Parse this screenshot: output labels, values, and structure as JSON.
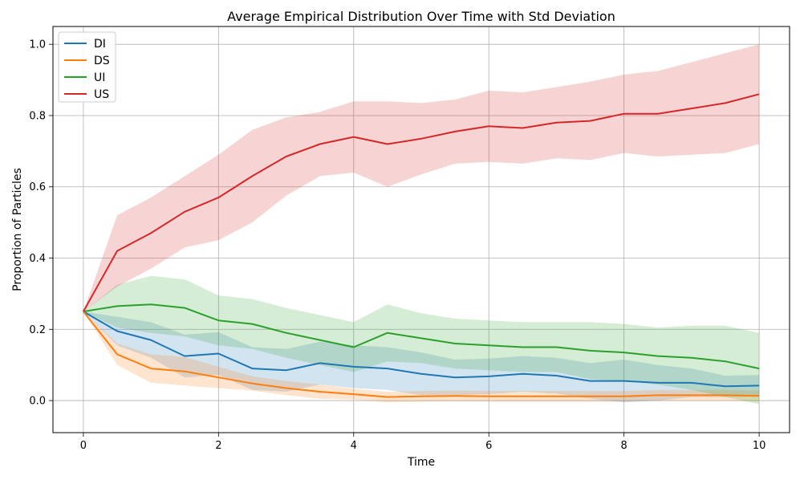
{
  "chart_data": {
    "type": "line",
    "title": "Average Empirical Distribution Over Time with Std Deviation",
    "xlabel": "Time",
    "ylabel": "Proportion of Particles",
    "xlim": [
      -0.45,
      10.45
    ],
    "ylim": [
      -0.09,
      1.05
    ],
    "grid": true,
    "legend_position": "top-left",
    "x_ticks": [
      0,
      2,
      4,
      6,
      8,
      10
    ],
    "x_tick_labels": [
      "0",
      "2",
      "4",
      "6",
      "8",
      "10"
    ],
    "y_ticks": [
      0.0,
      0.2,
      0.4,
      0.6,
      0.8,
      1.0
    ],
    "y_tick_labels": [
      "0.0",
      "0.2",
      "0.4",
      "0.6",
      "0.8",
      "1.0"
    ],
    "x": [
      0,
      0.5,
      1,
      1.5,
      2,
      2.5,
      3,
      3.5,
      4,
      4.5,
      5,
      5.5,
      6,
      6.5,
      7,
      7.5,
      8,
      8.5,
      9,
      9.5,
      10
    ],
    "series": [
      {
        "name": "DI",
        "color": "#1f77b4",
        "mean": [
          0.25,
          0.195,
          0.17,
          0.125,
          0.132,
          0.09,
          0.085,
          0.105,
          0.095,
          0.09,
          0.075,
          0.065,
          0.068,
          0.075,
          0.07,
          0.055,
          0.055,
          0.05,
          0.05,
          0.04,
          0.042
        ],
        "std": [
          0.0,
          0.04,
          0.05,
          0.06,
          0.06,
          0.06,
          0.06,
          0.06,
          0.06,
          0.06,
          0.06,
          0.05,
          0.05,
          0.05,
          0.05,
          0.05,
          0.06,
          0.05,
          0.04,
          0.03,
          0.03
        ]
      },
      {
        "name": "DS",
        "color": "#ff7f0e",
        "mean": [
          0.25,
          0.13,
          0.09,
          0.082,
          0.065,
          0.048,
          0.035,
          0.025,
          0.018,
          0.01,
          0.012,
          0.013,
          0.012,
          0.012,
          0.012,
          0.012,
          0.012,
          0.015,
          0.015,
          0.015,
          0.013
        ],
        "std": [
          0.0,
          0.03,
          0.04,
          0.04,
          0.03,
          0.02,
          0.02,
          0.02,
          0.015,
          0.015,
          0.015,
          0.015,
          0.015,
          0.015,
          0.015,
          0.015,
          0.015,
          0.015,
          0.015,
          0.015,
          0.015
        ]
      },
      {
        "name": "UI",
        "color": "#2ca02c",
        "mean": [
          0.25,
          0.265,
          0.27,
          0.26,
          0.225,
          0.215,
          0.19,
          0.17,
          0.15,
          0.19,
          0.175,
          0.16,
          0.155,
          0.15,
          0.15,
          0.14,
          0.135,
          0.125,
          0.12,
          0.11,
          0.09
        ],
        "std": [
          0.0,
          0.06,
          0.08,
          0.08,
          0.07,
          0.07,
          0.07,
          0.07,
          0.07,
          0.08,
          0.07,
          0.07,
          0.07,
          0.07,
          0.07,
          0.08,
          0.08,
          0.08,
          0.09,
          0.1,
          0.1
        ]
      },
      {
        "name": "US",
        "color": "#d62728",
        "mean": [
          0.25,
          0.42,
          0.47,
          0.53,
          0.57,
          0.63,
          0.685,
          0.72,
          0.74,
          0.72,
          0.735,
          0.755,
          0.77,
          0.765,
          0.78,
          0.785,
          0.805,
          0.805,
          0.82,
          0.835,
          0.86
        ],
        "std": [
          0.0,
          0.1,
          0.1,
          0.1,
          0.12,
          0.13,
          0.11,
          0.09,
          0.1,
          0.12,
          0.1,
          0.09,
          0.1,
          0.1,
          0.1,
          0.11,
          0.11,
          0.12,
          0.13,
          0.14,
          0.14
        ]
      }
    ]
  }
}
